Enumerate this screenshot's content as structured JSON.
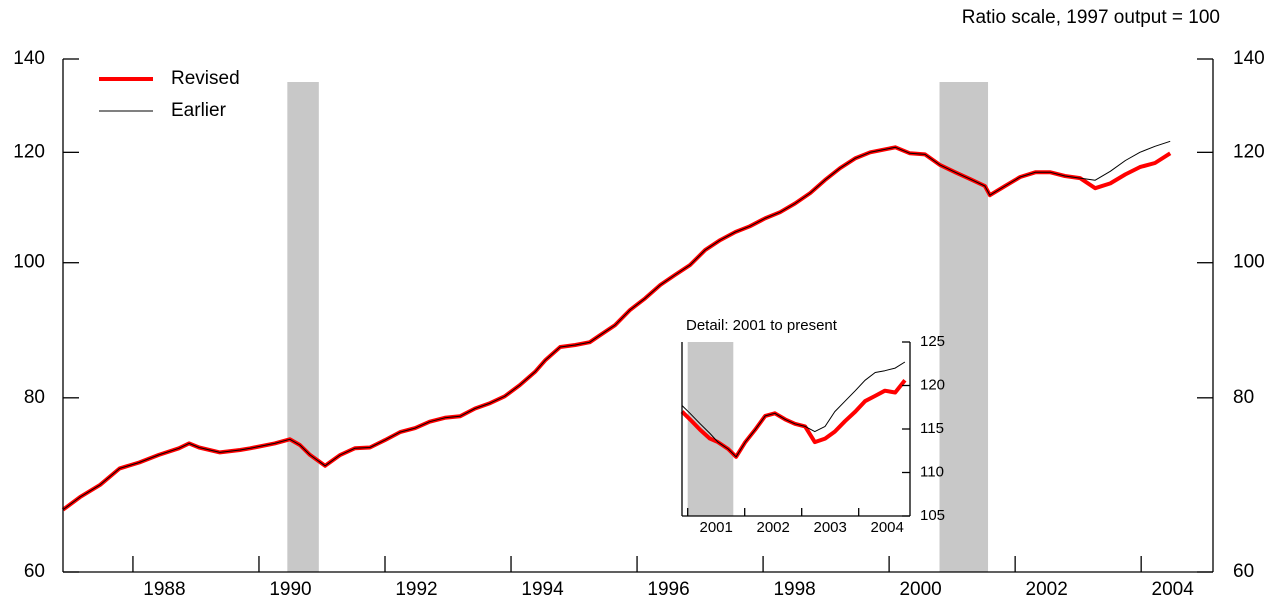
{
  "chart_data": [
    {
      "type": "line",
      "annotation": "Ratio scale, 1997 output = 100",
      "log_scale": true,
      "xlim": [
        1986.89,
        2005.14
      ],
      "ylim": [
        60,
        140
      ],
      "xticks": [
        1988,
        1990,
        1992,
        1994,
        1996,
        1998,
        2000,
        2002,
        2004
      ],
      "yticks": [
        60,
        80,
        100,
        120,
        140
      ],
      "shading": [
        [
          1990.45,
          1990.95
        ],
        [
          2000.8,
          2001.57
        ]
      ],
      "shading_color": "#c8c8c8",
      "legend": "upper left",
      "x": [
        1986.89,
        1987.16,
        1987.48,
        1987.79,
        1988.1,
        1988.41,
        1988.73,
        1988.89,
        1989.05,
        1989.38,
        1989.7,
        1989.86,
        1990.25,
        1990.49,
        1990.65,
        1990.81,
        1991.05,
        1991.29,
        1991.52,
        1991.76,
        1992.0,
        1992.24,
        1992.48,
        1992.71,
        1992.95,
        1993.19,
        1993.43,
        1993.67,
        1993.9,
        1994.14,
        1994.38,
        1994.54,
        1994.78,
        1995.02,
        1995.25,
        1995.41,
        1995.65,
        1995.89,
        1996.13,
        1996.37,
        1996.6,
        1996.84,
        1997.08,
        1997.32,
        1997.56,
        1997.79,
        1998.03,
        1998.27,
        1998.51,
        1998.75,
        1998.98,
        1999.22,
        1999.46,
        1999.7,
        1999.86,
        2000.1,
        2000.33,
        2000.57,
        2000.81,
        2001.05,
        2001.29,
        2001.52,
        2001.6,
        2001.84,
        2002.08,
        2002.32,
        2002.56,
        2002.79,
        2003.03,
        2003.27,
        2003.51,
        2003.75,
        2003.98,
        2004.22,
        2004.46
      ],
      "series": [
        {
          "name": "Revised",
          "color": "#ff0000",
          "width": 4,
          "values": [
            66.5,
            67.9,
            69.3,
            71.2,
            71.9,
            72.8,
            73.6,
            74.2,
            73.7,
            73.1,
            73.4,
            73.6,
            74.2,
            74.7,
            74.0,
            72.8,
            71.5,
            72.8,
            73.6,
            73.7,
            74.6,
            75.6,
            76.1,
            76.9,
            77.4,
            77.6,
            78.6,
            79.3,
            80.2,
            81.7,
            83.5,
            85.1,
            87.0,
            87.3,
            87.7,
            88.7,
            90.2,
            92.5,
            94.3,
            96.4,
            98.0,
            99.6,
            102.1,
            103.8,
            105.2,
            106.2,
            107.6,
            108.7,
            110.3,
            112.2,
            114.6,
            116.9,
            118.8,
            120.0,
            120.4,
            121.0,
            119.8,
            119.6,
            117.5,
            116.1,
            114.8,
            113.5,
            111.8,
            113.5,
            115.2,
            116.1,
            116.1,
            115.4,
            115.0,
            113.1,
            114.0,
            115.7,
            117.1,
            117.9,
            119.8
          ]
        },
        {
          "name": "Earlier",
          "color": "#000000",
          "width": 1,
          "values": [
            66.5,
            67.9,
            69.3,
            71.2,
            71.9,
            72.8,
            73.6,
            74.2,
            73.7,
            73.1,
            73.4,
            73.6,
            74.2,
            74.7,
            74.0,
            72.8,
            71.5,
            72.8,
            73.6,
            73.7,
            74.6,
            75.6,
            76.1,
            76.9,
            77.4,
            77.6,
            78.6,
            79.3,
            80.2,
            81.7,
            83.5,
            85.1,
            87.0,
            87.3,
            87.7,
            88.7,
            90.2,
            92.5,
            94.3,
            96.4,
            98.0,
            99.6,
            102.1,
            103.8,
            105.2,
            106.2,
            107.6,
            108.7,
            110.3,
            112.2,
            114.6,
            116.9,
            118.8,
            120.0,
            120.4,
            121.0,
            119.8,
            119.6,
            117.5,
            116.1,
            114.8,
            113.5,
            111.8,
            113.5,
            115.2,
            116.1,
            116.1,
            115.4,
            115.0,
            114.6,
            116.3,
            118.4,
            120.0,
            121.2,
            122.2
          ]
        }
      ]
    },
    {
      "type": "line",
      "title": "Detail: 2001 to present",
      "xlim": [
        2000.9,
        2004.9
      ],
      "ylim": [
        105,
        125
      ],
      "xticks": [
        2001,
        2002,
        2003,
        2004
      ],
      "yticks": [
        105,
        110,
        115,
        120,
        125
      ],
      "shading": [
        [
          2001.0,
          2001.8
        ]
      ],
      "shading_color": "#c8c8c8",
      "x": [
        2000.9,
        2001.04,
        2001.22,
        2001.39,
        2001.53,
        2001.71,
        2001.85,
        2002.01,
        2002.18,
        2002.36,
        2002.53,
        2002.71,
        2002.88,
        2003.06,
        2003.23,
        2003.41,
        2003.58,
        2003.76,
        2003.94,
        2004.11,
        2004.29,
        2004.46,
        2004.64,
        2004.81
      ],
      "series": [
        {
          "name": "Revised",
          "color": "#ff0000",
          "width": 4,
          "values": [
            117.0,
            116.1,
            114.9,
            113.9,
            113.5,
            112.7,
            111.8,
            113.5,
            114.9,
            116.5,
            116.8,
            116.1,
            115.6,
            115.3,
            113.5,
            113.9,
            114.7,
            115.9,
            117.0,
            118.2,
            118.8,
            119.4,
            119.2,
            120.6
          ]
        },
        {
          "name": "Earlier",
          "color": "#000000",
          "width": 1,
          "values": [
            117.7,
            116.8,
            115.6,
            114.5,
            113.5,
            112.7,
            111.8,
            113.5,
            114.9,
            116.5,
            116.8,
            116.1,
            115.6,
            115.3,
            114.7,
            115.3,
            117.0,
            118.2,
            119.4,
            120.6,
            121.5,
            121.7,
            122.0,
            122.7
          ]
        }
      ]
    }
  ]
}
